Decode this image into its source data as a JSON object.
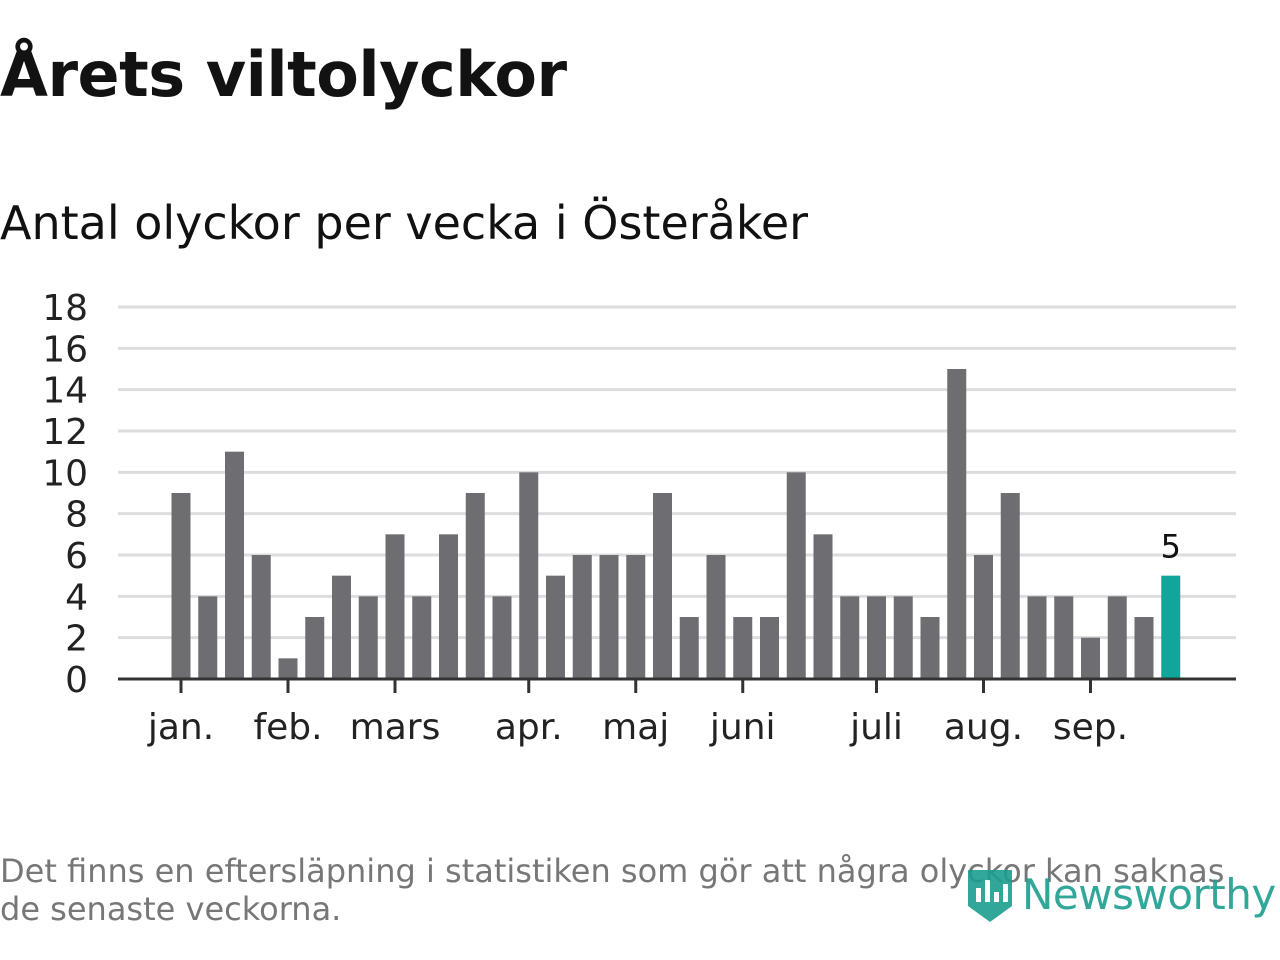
{
  "title": "Årets viltolyckor",
  "subtitle": "Antal olyckor per vecka i Österåker",
  "footnote": "Det finns en eftersläpning i statistiken som gör att några olyckor kan saknas de senaste veckorna.",
  "brand": "Newsworthy",
  "colors": {
    "bar": "#6e6d72",
    "highlight": "#11a69b",
    "grid": "#dddddd",
    "axis": "#333333",
    "brand": "#1a9e8f"
  },
  "chart_data": {
    "type": "bar",
    "title": "Antal olyckor per vecka i Österåker",
    "xlabel": "",
    "ylabel": "",
    "ylim": [
      0,
      18
    ],
    "yticks": [
      0,
      2,
      4,
      6,
      8,
      10,
      12,
      14,
      16,
      18
    ],
    "values": [
      9,
      4,
      11,
      6,
      1,
      3,
      5,
      4,
      7,
      4,
      7,
      9,
      4,
      10,
      5,
      6,
      6,
      6,
      9,
      3,
      6,
      3,
      3,
      10,
      7,
      4,
      4,
      4,
      3,
      15,
      6,
      9,
      4,
      4,
      2,
      4,
      3,
      5
    ],
    "highlight_index": 37,
    "highlight_label": "5",
    "month_labels": [
      {
        "label": "jan.",
        "bar_index": 0.5
      },
      {
        "label": "feb.",
        "bar_index": 4.5
      },
      {
        "label": "mars",
        "bar_index": 8.5
      },
      {
        "label": "apr.",
        "bar_index": 13.5
      },
      {
        "label": "maj",
        "bar_index": 17.5
      },
      {
        "label": "juni",
        "bar_index": 21.5
      },
      {
        "label": "juli",
        "bar_index": 26.5
      },
      {
        "label": "aug.",
        "bar_index": 30.5
      },
      {
        "label": "sep.",
        "bar_index": 34.5
      }
    ],
    "grid": true,
    "legend": "none"
  }
}
